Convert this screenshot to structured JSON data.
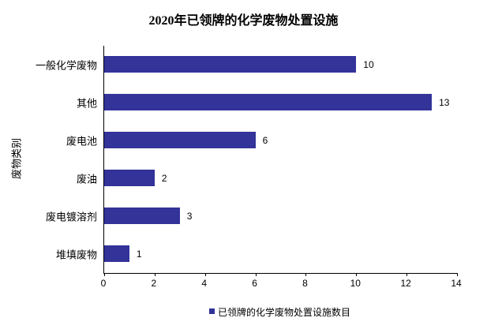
{
  "chart_data": {
    "type": "bar",
    "orientation": "horizontal",
    "title": "2020年已领牌的化学废物处置设施",
    "categories": [
      "一般化学废物",
      "其他",
      "废电池",
      "废油",
      "废电镀溶剂",
      "堆填废物"
    ],
    "values": [
      10,
      13,
      6,
      2,
      3,
      1
    ],
    "xlabel": "",
    "ylabel": "废物类别",
    "xlim": [
      0,
      14
    ],
    "x_ticks": [
      0,
      2,
      4,
      6,
      8,
      10,
      12,
      14
    ],
    "grid": false,
    "data_labels": true,
    "legend": [
      "已领牌的化学废物处置设施数目"
    ],
    "legend_position": "bottom",
    "bar_color": "#333399",
    "axis_color": "#000000",
    "background_color": "#ffffff"
  }
}
